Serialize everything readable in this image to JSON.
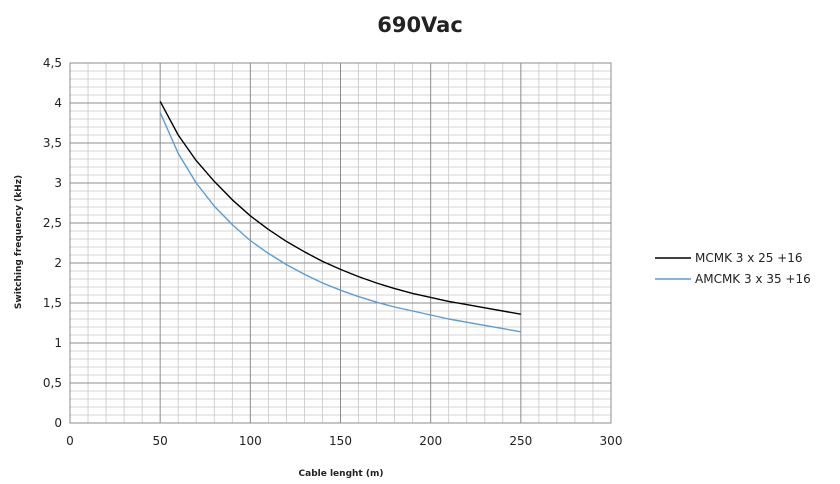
{
  "chart_data": {
    "type": "line",
    "title": "690Vac",
    "xlabel": "Cable lenght (m)",
    "ylabel": "Switching frequency (kHz)",
    "xlim": [
      0,
      300
    ],
    "ylim": [
      0,
      4.5
    ],
    "x_ticks": [
      "0",
      "50",
      "100",
      "150",
      "200",
      "250",
      "300"
    ],
    "y_ticks": [
      "0",
      "0,5",
      "1",
      "1,5",
      "2",
      "2,5",
      "3",
      "3,5",
      "4",
      "4,5"
    ],
    "grid": true,
    "legend_position": "right",
    "series": [
      {
        "name": "MCMK 3 x 25 +16",
        "color": "#000000",
        "x": [
          50,
          60,
          70,
          80,
          90,
          100,
          110,
          120,
          130,
          140,
          150,
          160,
          170,
          180,
          190,
          200,
          210,
          220,
          230,
          240,
          250
        ],
        "y": [
          4.02,
          3.6,
          3.28,
          3.02,
          2.79,
          2.59,
          2.42,
          2.27,
          2.14,
          2.02,
          1.92,
          1.83,
          1.75,
          1.68,
          1.62,
          1.57,
          1.52,
          1.48,
          1.44,
          1.4,
          1.36
        ]
      },
      {
        "name": "AMCMK 3 x 35 +16",
        "color": "#5b9bd5",
        "x": [
          50,
          60,
          70,
          80,
          90,
          100,
          110,
          120,
          130,
          140,
          150,
          160,
          170,
          180,
          190,
          200,
          210,
          220,
          230,
          240,
          250
        ],
        "y": [
          3.88,
          3.37,
          3.0,
          2.71,
          2.48,
          2.28,
          2.12,
          1.98,
          1.86,
          1.75,
          1.66,
          1.58,
          1.51,
          1.45,
          1.4,
          1.35,
          1.3,
          1.26,
          1.22,
          1.18,
          1.14
        ]
      }
    ]
  }
}
